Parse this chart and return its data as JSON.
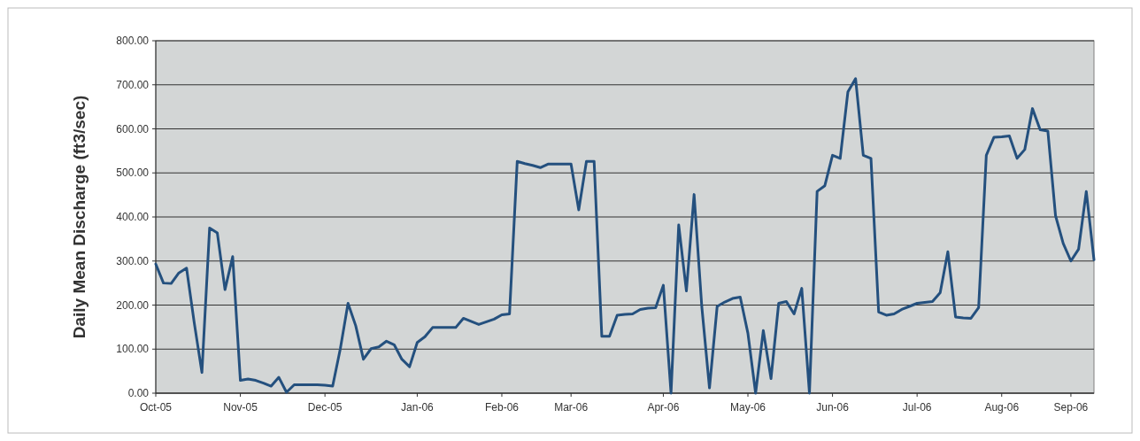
{
  "chart_data": {
    "type": "line",
    "ylabel": "Daily Mean Discharge (ft3/sec)",
    "grid": "y",
    "marker": "none",
    "line_style": "solid",
    "ylim": [
      0,
      800
    ],
    "yticks": [
      {
        "value": 0,
        "label": "0.00"
      },
      {
        "value": 100,
        "label": "100.00"
      },
      {
        "value": 200,
        "label": "200.00"
      },
      {
        "value": 300,
        "label": "300.00"
      },
      {
        "value": 400,
        "label": "400.00"
      },
      {
        "value": 500,
        "label": "500.00"
      },
      {
        "value": 600,
        "label": "600.00"
      },
      {
        "value": 700,
        "label": "700.00"
      },
      {
        "value": 800,
        "label": "800.00"
      }
    ],
    "categories": [
      "Oct-05",
      null,
      null,
      null,
      null,
      null,
      null,
      null,
      null,
      null,
      null,
      "Nov-05",
      null,
      null,
      null,
      null,
      null,
      null,
      null,
      null,
      null,
      null,
      "Dec-05",
      null,
      null,
      null,
      null,
      null,
      null,
      null,
      null,
      null,
      null,
      null,
      "Jan-06",
      null,
      null,
      null,
      null,
      null,
      null,
      null,
      null,
      null,
      null,
      "Feb-06",
      null,
      null,
      null,
      null,
      null,
      null,
      null,
      null,
      "Mar-06",
      null,
      null,
      null,
      null,
      null,
      null,
      null,
      null,
      null,
      null,
      null,
      "Apr-06",
      null,
      null,
      null,
      null,
      null,
      null,
      null,
      null,
      null,
      null,
      "May-06",
      null,
      null,
      null,
      null,
      null,
      null,
      null,
      null,
      null,
      null,
      "Jun-06",
      null,
      null,
      null,
      null,
      null,
      null,
      null,
      null,
      null,
      null,
      "Jul-06",
      null,
      null,
      null,
      null,
      null,
      null,
      null,
      null,
      null,
      null,
      "Aug-06",
      null,
      null,
      null,
      null,
      null,
      null,
      null,
      null,
      "Sep-06",
      null,
      null,
      null
    ],
    "series": [
      {
        "color": "#24507e",
        "values": [
          293,
          250,
          249,
          273,
          284,
          160,
          47,
          375,
          364,
          235,
          310,
          29,
          32,
          29,
          23,
          16,
          36,
          2,
          19,
          19,
          19,
          19,
          18,
          16,
          101,
          204,
          153,
          77,
          101,
          105,
          118,
          110,
          77,
          60,
          115,
          128,
          149,
          149,
          149,
          149,
          170,
          163,
          156,
          162,
          168,
          178,
          180,
          526,
          521,
          517,
          512,
          520,
          520,
          520,
          520,
          416,
          526,
          526,
          129,
          129,
          177,
          179,
          180,
          190,
          193,
          194,
          245,
          0,
          382,
          232,
          451,
          197,
          12,
          197,
          207,
          215,
          218,
          136,
          0,
          142,
          33,
          204,
          208,
          180,
          238,
          0,
          458,
          471,
          540,
          533,
          684,
          714,
          540,
          533,
          184,
          177,
          180,
          190,
          197,
          204,
          206,
          208,
          228,
          321,
          173,
          171,
          170,
          194,
          540,
          581,
          582,
          584,
          533,
          553,
          646,
          598,
          595,
          403,
          340,
          300,
          327,
          458,
          303
        ]
      }
    ]
  }
}
